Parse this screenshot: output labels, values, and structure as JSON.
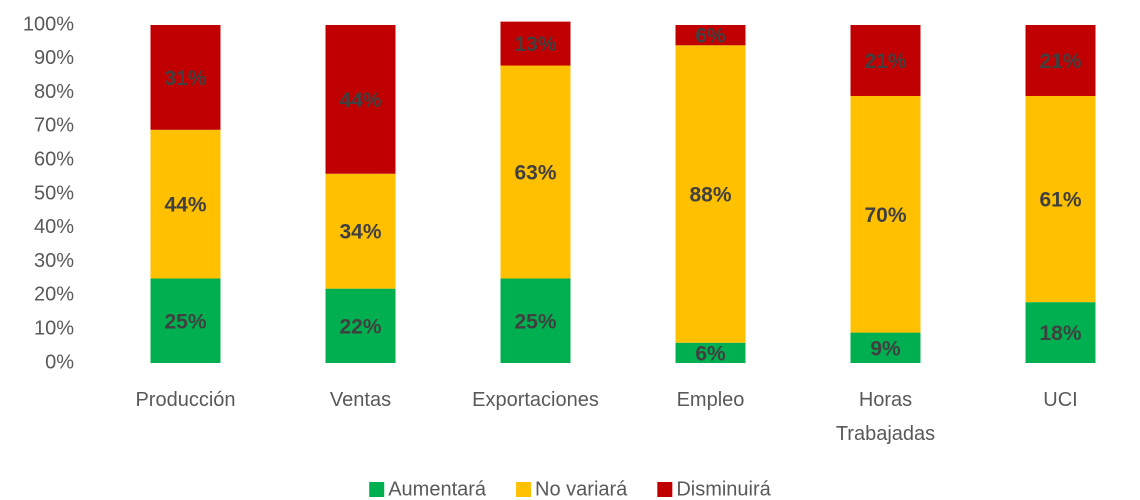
{
  "chart_data": {
    "type": "stacked_bar",
    "categories": [
      "Producción",
      "Ventas",
      "Exportaciones",
      "Empleo",
      "Horas\nTrabajadas",
      "UCI"
    ],
    "series": [
      {
        "name": "Aumentará",
        "color": "#00b050",
        "values": [
          25,
          22,
          25,
          6,
          9,
          18
        ],
        "value_labels": [
          "25%",
          "22%",
          "25%",
          "6%",
          "9%",
          "18%"
        ]
      },
      {
        "name": "No variará",
        "color": "#ffc000",
        "values": [
          44,
          34,
          63,
          88,
          70,
          61
        ],
        "value_labels": [
          "44%",
          "34%",
          "63%",
          "88%",
          "70%",
          "61%"
        ]
      },
      {
        "name": "Disminuirá",
        "color": "#c00000",
        "values": [
          31,
          44,
          13,
          6,
          21,
          21
        ],
        "value_labels": [
          "31%",
          "44%",
          "13%",
          "6%",
          "21%",
          "21%"
        ]
      }
    ],
    "ylim": [
      0,
      100
    ],
    "yticks": [
      {
        "value": 0,
        "label": "0%"
      },
      {
        "value": 10,
        "label": "10%"
      },
      {
        "value": 20,
        "label": "20%"
      },
      {
        "value": 30,
        "label": "30%"
      },
      {
        "value": 40,
        "label": "40%"
      },
      {
        "value": 50,
        "label": "50%"
      },
      {
        "value": 60,
        "label": "60%"
      },
      {
        "value": 70,
        "label": "70%"
      },
      {
        "value": 80,
        "label": "80%"
      },
      {
        "value": 90,
        "label": "90%"
      },
      {
        "value": 100,
        "label": "100%"
      }
    ],
    "legend": "bottom"
  }
}
